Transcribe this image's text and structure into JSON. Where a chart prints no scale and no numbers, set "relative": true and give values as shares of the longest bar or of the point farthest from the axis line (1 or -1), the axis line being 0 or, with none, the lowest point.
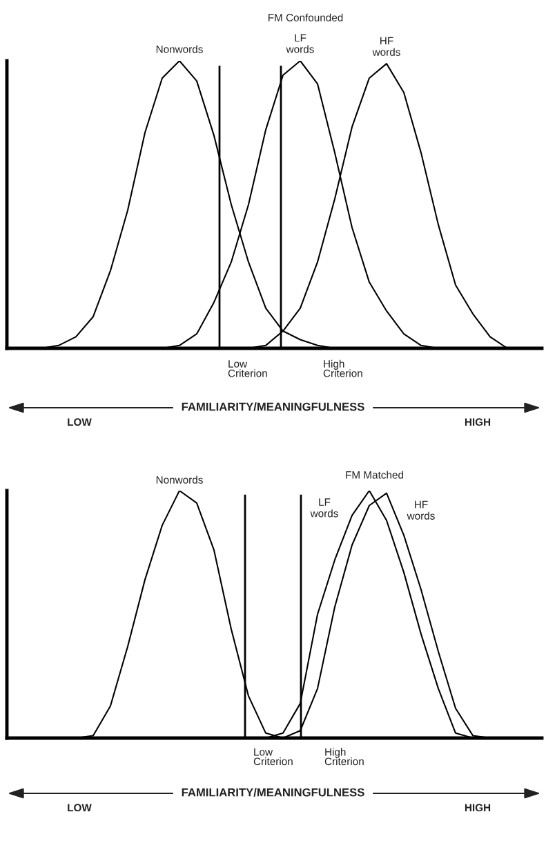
{
  "chart_data": [
    {
      "type": "line",
      "title": "FM Confounded",
      "relative": true,
      "legend": false,
      "marker": "none",
      "line_style": "solid",
      "xlabel": "FAMILIARITY/MEANINGFULNESS",
      "annotations": [
        "Low\nCriterion",
        "High\nCriterion",
        "LOW",
        "HIGH"
      ],
      "categories": [
        null,
        null,
        null,
        null,
        null,
        null,
        null,
        null,
        null,
        null,
        null,
        null,
        null,
        null,
        null,
        null,
        null,
        null,
        null,
        null,
        null,
        null,
        null,
        null,
        null,
        null,
        null,
        null,
        null,
        null,
        null,
        null
      ],
      "series": [
        {
          "name": "Nonwords",
          "color": "#000000",
          "values": [
            null,
            null,
            0,
            0.01,
            0.04,
            0.11,
            0.27,
            0.48,
            0.75,
            0.94,
            1.0,
            0.93,
            0.74,
            0.5,
            0.3,
            0.14,
            0.06,
            0.03,
            0.01,
            0,
            null,
            null,
            null,
            null,
            null,
            null,
            null,
            null,
            null,
            null,
            null,
            null
          ]
        },
        {
          "name": "LF\nwords",
          "color": "#000000",
          "values": [
            null,
            null,
            null,
            null,
            null,
            null,
            null,
            null,
            null,
            0,
            0.01,
            0.05,
            0.16,
            0.3,
            0.5,
            0.76,
            0.95,
            1.0,
            0.92,
            0.68,
            0.42,
            0.23,
            0.13,
            0.05,
            0.01,
            0,
            null,
            null,
            null,
            null,
            null,
            null
          ]
        },
        {
          "name": "HF\nwords",
          "color": "#000000",
          "values": [
            null,
            null,
            null,
            null,
            null,
            null,
            null,
            null,
            null,
            null,
            null,
            null,
            null,
            null,
            0,
            0.01,
            0.06,
            0.14,
            0.3,
            0.52,
            0.77,
            0.94,
            0.99,
            0.89,
            0.68,
            0.43,
            0.22,
            0.12,
            0.04,
            0,
            null,
            null
          ]
        }
      ]
    },
    {
      "type": "line",
      "title": "FM Matched",
      "relative": true,
      "legend": false,
      "marker": "none",
      "line_style": "solid",
      "xlabel": "FAMILIARITY/MEANINGFULNESS",
      "annotations": [
        "Low\nCriterion",
        "High\nCriterion",
        "LOW",
        "HIGH"
      ],
      "categories": [
        null,
        null,
        null,
        null,
        null,
        null,
        null,
        null,
        null,
        null,
        null,
        null,
        null,
        null,
        null,
        null,
        null,
        null,
        null,
        null,
        null,
        null,
        null,
        null,
        null,
        null,
        null,
        null,
        null,
        null,
        null,
        null
      ],
      "series": [
        {
          "name": "Nonwords",
          "color": "#000000",
          "values": [
            null,
            null,
            null,
            null,
            0,
            0.01,
            0.13,
            0.37,
            0.64,
            0.86,
            1.0,
            0.95,
            0.76,
            0.44,
            0.17,
            0.02,
            0,
            null,
            null,
            null,
            null,
            null,
            null,
            null,
            null,
            null,
            null,
            null,
            null,
            null,
            null,
            null
          ]
        },
        {
          "name": "LF\nwords",
          "color": "#000000",
          "values": [
            null,
            null,
            null,
            null,
            null,
            null,
            null,
            null,
            null,
            null,
            null,
            null,
            null,
            null,
            null,
            0,
            0.02,
            0.14,
            0.5,
            0.72,
            0.9,
            1.0,
            0.88,
            0.67,
            0.42,
            0.2,
            0.02,
            0,
            null,
            null,
            null,
            null
          ]
        },
        {
          "name": "HF\nwords",
          "color": "#000000",
          "values": [
            null,
            null,
            null,
            null,
            null,
            null,
            null,
            null,
            null,
            null,
            null,
            null,
            null,
            null,
            null,
            null,
            0,
            0.03,
            0.2,
            0.53,
            0.78,
            0.94,
            0.99,
            0.82,
            0.6,
            0.35,
            0.12,
            0.01,
            0,
            null,
            null,
            null
          ]
        }
      ]
    }
  ]
}
